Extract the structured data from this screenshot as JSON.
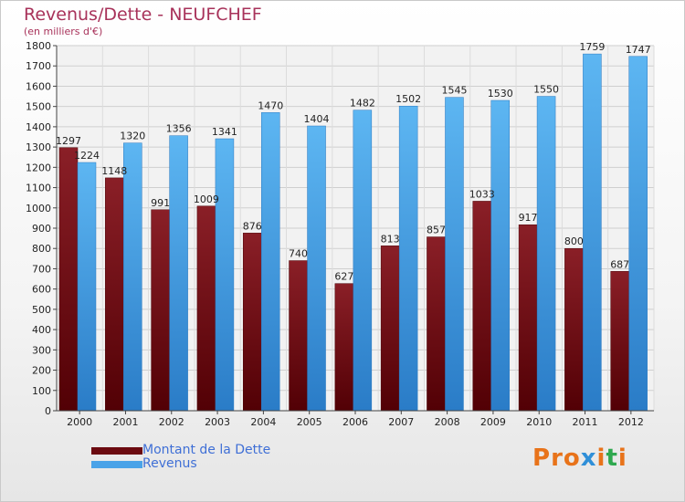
{
  "header": {
    "title": "Revenus/Dette - NEUFCHEF",
    "subtitle": "(en milliers d'€)"
  },
  "legend": {
    "items": [
      {
        "label": "Montant de la Dette",
        "color": "#7a0f14"
      },
      {
        "label": "Revenus",
        "color": "#4aa3e8"
      }
    ]
  },
  "logo": {
    "text": "Proxiti",
    "colors": [
      "#e8731a",
      "#e8731a",
      "#e8731a",
      "#2f8fd8",
      "#e8731a",
      "#2fa84f",
      "#e8731a"
    ]
  },
  "chart_data": {
    "type": "bar",
    "categories": [
      "2000",
      "2001",
      "2002",
      "2003",
      "2004",
      "2005",
      "2006",
      "2007",
      "2008",
      "2009",
      "2010",
      "2011",
      "2012"
    ],
    "series": [
      {
        "name": "Montant de la Dette",
        "color": "#7a0f14",
        "values": [
          1297,
          1148,
          991,
          1009,
          876,
          740,
          627,
          813,
          857,
          1033,
          917,
          800,
          687
        ]
      },
      {
        "name": "Revenus",
        "color": "#4aa3e8",
        "values": [
          1224,
          1320,
          1356,
          1341,
          1470,
          1404,
          1482,
          1502,
          1545,
          1530,
          1550,
          1759,
          1747
        ]
      }
    ],
    "data_labels": [
      [
        "1297",
        "1148",
        "991",
        "1009",
        "876",
        "740",
        "627",
        "813",
        "857",
        "1033",
        "917",
        "800",
        "687"
      ],
      [
        "1224",
        "1320",
        "1356",
        "1341",
        "1470",
        "1404",
        "1482",
        "1502",
        "1545",
        "1530",
        "1550",
        "1759",
        "1747"
      ]
    ],
    "ylim": [
      0,
      1800
    ],
    "yticks": [
      0,
      100,
      200,
      300,
      400,
      500,
      600,
      700,
      800,
      900,
      1000,
      1100,
      1200,
      1300,
      1400,
      1500,
      1600,
      1700,
      1800
    ],
    "grid": true,
    "legend_position": "bottom-left"
  }
}
